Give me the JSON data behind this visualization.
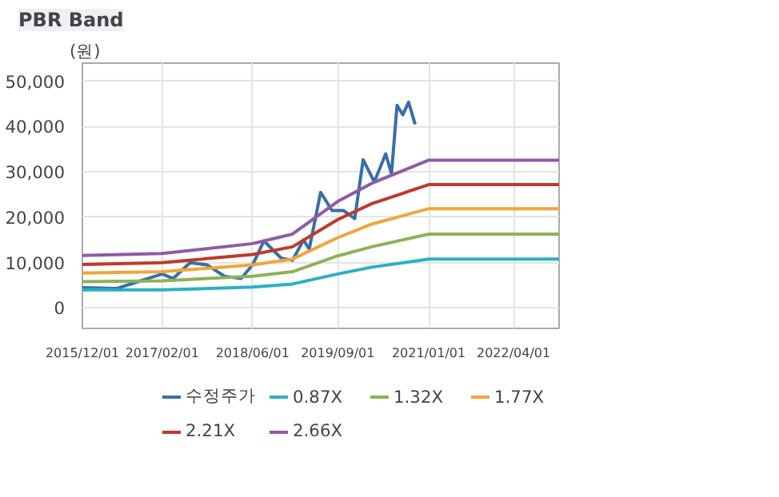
{
  "chart_data": {
    "type": "line",
    "title": "PBR Band",
    "ylabel": "(원)",
    "xlim": [
      "2015-12-01",
      "2022-12-01"
    ],
    "ylim": [
      -4500,
      54000
    ],
    "xticks": [
      {
        "value": "2015-12-01",
        "label": "2015/12/01"
      },
      {
        "value": "2017-02-01",
        "label": "2017/02/01"
      },
      {
        "value": "2018-06-01",
        "label": "2018/06/01"
      },
      {
        "value": "2019-09-01",
        "label": "2019/09/01"
      },
      {
        "value": "2021-01-01",
        "label": "2021/01/01"
      },
      {
        "value": "2022-04-01",
        "label": "2022/04/01"
      }
    ],
    "yticks": [
      {
        "value": 0,
        "label": "0"
      },
      {
        "value": 10000,
        "label": "10,000"
      },
      {
        "value": 20000,
        "label": "20,000"
      },
      {
        "value": 30000,
        "label": "30,000"
      },
      {
        "value": 40000,
        "label": "40,000"
      },
      {
        "value": 50000,
        "label": "50,000"
      }
    ],
    "grid": true,
    "legend": "bottom",
    "marker": "none",
    "line_style": "solid",
    "series": [
      {
        "name": "수정주가",
        "color": "#3a6ea5",
        "x": [
          "2015-12-01",
          "2016-06-01",
          "2016-09-01",
          "2017-02-01",
          "2017-04-01",
          "2017-07-01",
          "2017-10-01",
          "2018-01-01",
          "2018-04-01",
          "2018-06-01",
          "2018-08-01",
          "2018-11-01",
          "2019-01-01",
          "2019-03-01",
          "2019-04-01",
          "2019-06-01",
          "2019-08-01",
          "2019-10-01",
          "2019-12-01",
          "2020-01-15",
          "2020-03-15",
          "2020-05-15",
          "2020-06-15",
          "2020-07-15",
          "2020-08-15",
          "2020-09-15",
          "2020-10-20"
        ],
        "values": [
          4500,
          4300,
          5500,
          7500,
          6500,
          10000,
          9500,
          7000,
          6500,
          9500,
          14800,
          11000,
          10500,
          15000,
          13000,
          25500,
          21500,
          21500,
          19700,
          32700,
          27800,
          34000,
          29600,
          44700,
          42600,
          45400,
          40500
        ]
      },
      {
        "name": "0.87X",
        "color": "#2ab0c5",
        "x": [
          "2015-12-01",
          "2017-02-01",
          "2018-06-01",
          "2019-01-01",
          "2019-09-01",
          "2020-03-01",
          "2021-01-01",
          "2022-12-01"
        ],
        "values": [
          4000,
          4000,
          4600,
          5300,
          7500,
          9000,
          10800,
          10800
        ]
      },
      {
        "name": "1.32X",
        "color": "#8db255",
        "x": [
          "2015-12-01",
          "2017-02-01",
          "2018-06-01",
          "2019-01-01",
          "2019-09-01",
          "2020-03-01",
          "2021-01-01",
          "2022-12-01"
        ],
        "values": [
          5800,
          6000,
          7000,
          8000,
          11500,
          13500,
          16300,
          16300
        ]
      },
      {
        "name": "1.77X",
        "color": "#f2a53a",
        "x": [
          "2015-12-01",
          "2017-02-01",
          "2018-06-01",
          "2019-01-01",
          "2019-09-01",
          "2020-03-01",
          "2021-01-01",
          "2022-12-01"
        ],
        "values": [
          7700,
          8000,
          9500,
          10800,
          15500,
          18500,
          21900,
          21900
        ]
      },
      {
        "name": "2.21X",
        "color": "#c0392b",
        "x": [
          "2015-12-01",
          "2017-02-01",
          "2018-06-01",
          "2019-01-01",
          "2019-09-01",
          "2020-03-01",
          "2021-01-01",
          "2022-12-01"
        ],
        "values": [
          9600,
          10000,
          11800,
          13500,
          19500,
          23000,
          27200,
          27200
        ]
      },
      {
        "name": "2.66X",
        "color": "#8e5ba8",
        "x": [
          "2015-12-01",
          "2017-02-01",
          "2018-06-01",
          "2019-01-01",
          "2019-09-01",
          "2020-03-01",
          "2021-01-01",
          "2022-12-01"
        ],
        "values": [
          11600,
          12000,
          14200,
          16300,
          23500,
          27500,
          32600,
          32600
        ]
      }
    ]
  }
}
